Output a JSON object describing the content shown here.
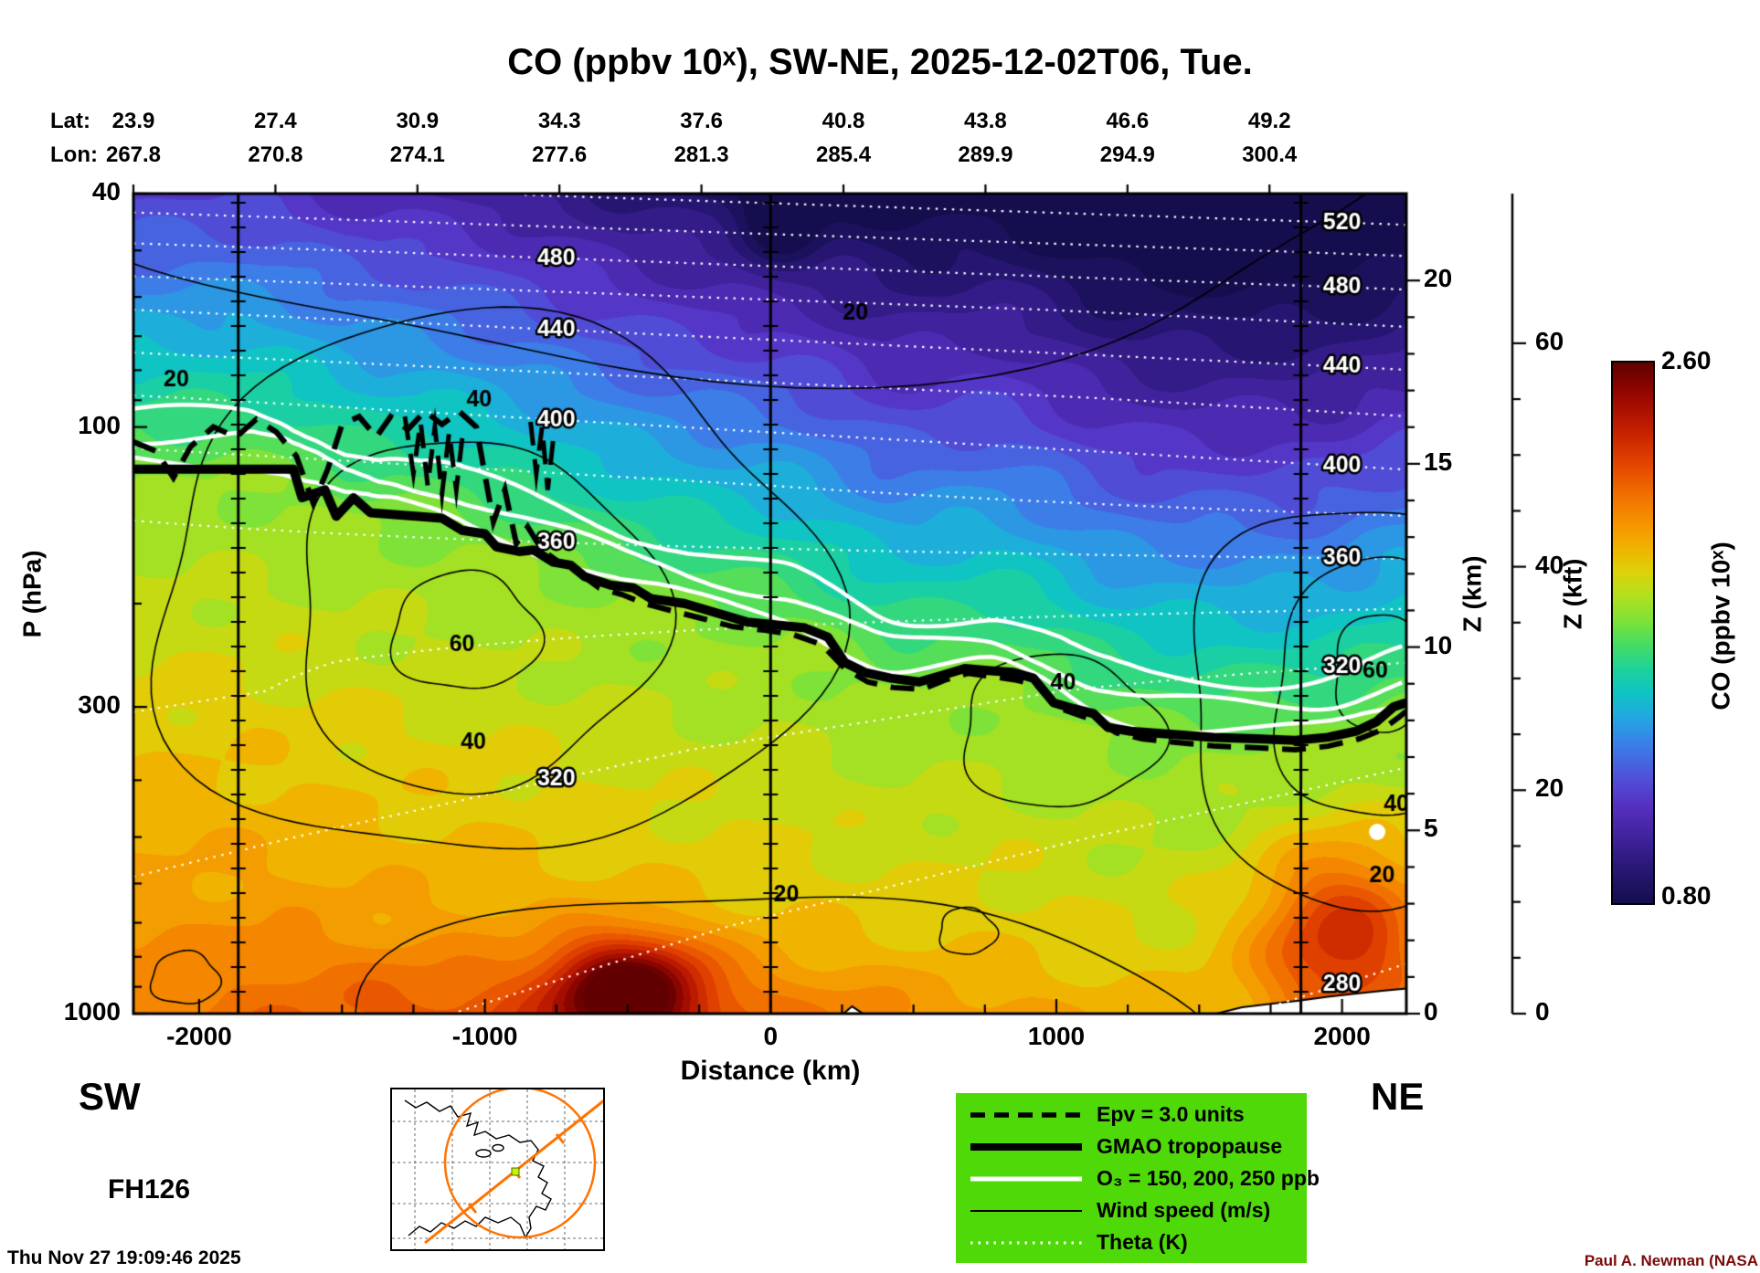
{
  "title": "CO (ppbv 10ˣ), SW-NE, 2025-12-02T06, Tue.",
  "endpoints": {
    "sw": "SW",
    "ne": "NE"
  },
  "flight_id": "FH126",
  "footer": {
    "timestamp": "Thu Nov 27 19:09:46 2025",
    "credit": "Paul A. Newman (NASA",
    "credit_color": "#7a0a0a"
  },
  "top_axis": {
    "lat_label": "Lat:",
    "lon_label": "Lon:",
    "lat_values": [
      "23.9",
      "27.4",
      "30.9",
      "34.3",
      "37.6",
      "40.8",
      "43.8",
      "46.6",
      "49.2"
    ],
    "lon_values": [
      "267.8",
      "270.8",
      "274.1",
      "277.6",
      "281.3",
      "285.4",
      "289.9",
      "294.9",
      "300.4"
    ],
    "km_positions": [
      -2230,
      -1733,
      -1236,
      -739,
      -242,
      255,
      752,
      1249,
      1746
    ]
  },
  "axes": {
    "p_label": "P (hPa)",
    "x_label": "Distance (km)",
    "z_km_label": "Z (km)",
    "z_kft_label": "Z (kft)",
    "p_ticks": [
      40,
      100,
      300,
      1000
    ],
    "p_minor_ticks": [
      50,
      60,
      70,
      80,
      90,
      200,
      400,
      500,
      600,
      700,
      800,
      900
    ],
    "x_ticks": [
      -2000,
      -1000,
      0,
      1000,
      2000
    ],
    "z_km_ticks": [
      20,
      15,
      10,
      5,
      0
    ],
    "z_kft_ticks": [
      60,
      40,
      20,
      0
    ],
    "scale_height_km": 6.95
  },
  "colorbar": {
    "label": "CO (ppbv 10ˣ)",
    "max": "2.60",
    "min": "0.80",
    "vmin": 0.8,
    "vmax": 2.6
  },
  "legend": {
    "bg_color": "#4fd908",
    "items": [
      {
        "key": "epv",
        "label": "Epv = 3.0 units",
        "style": "dashed-black-thick"
      },
      {
        "key": "tropopause",
        "label": "GMAO tropopause",
        "style": "solid-black-thick"
      },
      {
        "key": "o3",
        "label": "O₃ = 150, 200, 250 ppb",
        "style": "solid-white"
      },
      {
        "key": "wind",
        "label": "Wind speed (m/s)",
        "style": "solid-black-thin"
      },
      {
        "key": "theta",
        "label": "Theta (K)",
        "style": "dotted-white"
      }
    ]
  },
  "chart_data": {
    "type": "heatmap",
    "title": "CO (ppbv 10ˣ), SW-NE, 2025-12-02T06, Tue.",
    "xlabel": "Distance (km)",
    "ylabel": "P (hPa)",
    "x_range": [
      -2230,
      2225
    ],
    "p_range": [
      40,
      1000
    ],
    "ref_lines_km": [
      -1863,
      0,
      1856
    ],
    "co_range": [
      0.8,
      2.6
    ],
    "co_colormap": [
      [
        0.8,
        "#140e4e"
      ],
      [
        0.92,
        "#2a1878"
      ],
      [
        1.02,
        "#41229e"
      ],
      [
        1.12,
        "#5530c0"
      ],
      [
        1.22,
        "#4f52da"
      ],
      [
        1.32,
        "#3c7ce8"
      ],
      [
        1.42,
        "#22a8e0"
      ],
      [
        1.5,
        "#10c4c4"
      ],
      [
        1.58,
        "#1ed29a"
      ],
      [
        1.66,
        "#46dc64"
      ],
      [
        1.74,
        "#7ee238"
      ],
      [
        1.82,
        "#b0e01e"
      ],
      [
        1.9,
        "#dcd40a"
      ],
      [
        1.98,
        "#f0b400"
      ],
      [
        2.06,
        "#f69500"
      ],
      [
        2.16,
        "#f07000"
      ],
      [
        2.26,
        "#e44600"
      ],
      [
        2.38,
        "#c41e00"
      ],
      [
        2.5,
        "#940600"
      ],
      [
        2.6,
        "#600000"
      ]
    ],
    "tropopause_hpa": [
      [
        -2230,
        118
      ],
      [
        -1670,
        118
      ],
      [
        -1640,
        132
      ],
      [
        -1560,
        128
      ],
      [
        -1520,
        142
      ],
      [
        -1460,
        132
      ],
      [
        -1400,
        140
      ],
      [
        -1150,
        143
      ],
      [
        -1080,
        150
      ],
      [
        -1000,
        152
      ],
      [
        -960,
        160
      ],
      [
        -880,
        163
      ],
      [
        -830,
        162
      ],
      [
        -760,
        170
      ],
      [
        -700,
        172
      ],
      [
        -650,
        180
      ],
      [
        -560,
        186
      ],
      [
        -480,
        188
      ],
      [
        -420,
        196
      ],
      [
        -300,
        200
      ],
      [
        -180,
        208
      ],
      [
        -80,
        215
      ],
      [
        40,
        218
      ],
      [
        120,
        220
      ],
      [
        200,
        228
      ],
      [
        260,
        252
      ],
      [
        330,
        262
      ],
      [
        420,
        268
      ],
      [
        520,
        272
      ],
      [
        600,
        265
      ],
      [
        680,
        258
      ],
      [
        760,
        260
      ],
      [
        850,
        262
      ],
      [
        920,
        268
      ],
      [
        990,
        295
      ],
      [
        1060,
        302
      ],
      [
        1130,
        308
      ],
      [
        1180,
        325
      ],
      [
        1260,
        330
      ],
      [
        1400,
        334
      ],
      [
        1550,
        338
      ],
      [
        1700,
        340
      ],
      [
        1835,
        342
      ],
      [
        1950,
        338
      ],
      [
        2050,
        330
      ],
      [
        2120,
        318
      ],
      [
        2180,
        300
      ],
      [
        2225,
        295
      ]
    ],
    "epv_path_hpa": [
      [
        -2230,
        106
      ],
      [
        -2150,
        110
      ],
      [
        -2090,
        122
      ],
      [
        -2030,
        108
      ],
      [
        -1950,
        100
      ],
      [
        -1870,
        104
      ],
      [
        -1800,
        97
      ],
      [
        -1730,
        102
      ],
      [
        -1660,
        112
      ],
      [
        -1600,
        135
      ],
      [
        -1550,
        118
      ],
      [
        -1500,
        99
      ],
      [
        -1440,
        96
      ],
      [
        -1380,
        104
      ],
      [
        -1330,
        96
      ],
      [
        -1270,
        101
      ],
      [
        -1210,
        94
      ],
      [
        -1150,
        99
      ],
      [
        -1090,
        94
      ],
      [
        -1030,
        100
      ],
      [
        -970,
        145
      ],
      [
        -930,
        128
      ],
      [
        -890,
        158
      ],
      [
        -850,
        148
      ],
      [
        -800,
        162
      ],
      [
        -740,
        170
      ],
      [
        -680,
        176
      ],
      [
        -600,
        188
      ],
      [
        -520,
        193
      ],
      [
        -440,
        200
      ],
      [
        -340,
        206
      ],
      [
        -240,
        212
      ],
      [
        -130,
        219
      ],
      [
        -20,
        222
      ],
      [
        80,
        226
      ],
      [
        180,
        235
      ],
      [
        260,
        258
      ],
      [
        340,
        272
      ],
      [
        430,
        278
      ],
      [
        530,
        280
      ],
      [
        610,
        270
      ],
      [
        690,
        263
      ],
      [
        770,
        266
      ],
      [
        860,
        270
      ],
      [
        930,
        275
      ],
      [
        1000,
        300
      ],
      [
        1080,
        310
      ],
      [
        1150,
        318
      ],
      [
        1210,
        332
      ],
      [
        1300,
        340
      ],
      [
        1420,
        345
      ],
      [
        1560,
        350
      ],
      [
        1700,
        352
      ],
      [
        1835,
        355
      ],
      [
        1950,
        350
      ],
      [
        2060,
        340
      ],
      [
        2140,
        328
      ],
      [
        2200,
        312
      ],
      [
        2225,
        305
      ]
    ],
    "epv_extra_paths": [
      [
        [
          -1280,
          96
        ],
        [
          -1250,
          120
        ],
        [
          -1225,
          98
        ],
        [
          -1200,
          126
        ],
        [
          -1175,
          100
        ],
        [
          -1150,
          130
        ],
        [
          -1125,
          102
        ],
        [
          -1100,
          128
        ],
        [
          -1075,
          100
        ]
      ],
      [
        [
          -840,
          98
        ],
        [
          -820,
          120
        ],
        [
          -800,
          100
        ],
        [
          -780,
          128
        ],
        [
          -760,
          104
        ]
      ]
    ],
    "o3_levels_ppb": [
      150,
      200,
      250
    ],
    "o3_offset_scales": [
      0.97,
      0.88,
      0.8
    ],
    "theta_contours": {
      "min": 280,
      "max": 540,
      "step": 20,
      "labeled": [
        280,
        320,
        360,
        400,
        440,
        480,
        520
      ],
      "label_x_km": [
        -750,
        2000
      ],
      "A_knots": [
        [
          1.6,
          527
        ],
        [
          1.7,
          489
        ],
        [
          1.8,
          454
        ],
        [
          1.95,
          413
        ],
        [
          2.1,
          380
        ],
        [
          2.25,
          352
        ],
        [
          2.4,
          332
        ],
        [
          2.55,
          318
        ],
        [
          2.7,
          308
        ],
        [
          2.85,
          299
        ],
        [
          3.0,
          292
        ]
      ],
      "B_troposphere": -16,
      "B_stratosphere": 14
    },
    "wind_contours": [
      {
        "level": 20,
        "cx": -1000,
        "cl": 2.28,
        "rx": 1180,
        "rl": 0.46,
        "w0": 0.5
      },
      {
        "level": 40,
        "cx": -1040,
        "cl": 2.32,
        "rx": 640,
        "rl": 0.3,
        "w0": 1.7
      },
      {
        "level": 60,
        "cx": -1070,
        "cl": 2.35,
        "rx": 260,
        "rl": 0.1,
        "w0": 0.3
      },
      {
        "level": 20,
        "cx": 2100,
        "cl": 2.47,
        "rx": 660,
        "rl": 0.34,
        "w0": 2.1
      },
      {
        "level": 40,
        "cx": 2140,
        "cl": 2.45,
        "rx": 390,
        "rl": 0.22,
        "w0": 0.8
      },
      {
        "level": 60,
        "cx": 2150,
        "cl": 2.42,
        "rx": 185,
        "rl": 0.1,
        "w0": 1.5
      },
      {
        "level": 20,
        "cx": -200,
        "cl": 1.5,
        "rx": 2500,
        "rl": 0.4,
        "w0": 4.0
      },
      {
        "level": 20,
        "cx": 0,
        "cl": 3.12,
        "rx": 1500,
        "rl": 0.34,
        "w0": 2.6
      },
      {
        "level": 40,
        "cx": 1010,
        "cl": 2.52,
        "rx": 350,
        "rl": 0.13,
        "w0": 1.1
      },
      {
        "level": 20,
        "cx": -2050,
        "cl": 2.94,
        "rx": 120,
        "rl": 0.045,
        "w0": 0.2
      },
      {
        "level": 20,
        "cx": 688,
        "cl": 2.86,
        "rx": 100,
        "rl": 0.04,
        "w0": 0.9
      }
    ],
    "wind_labels": [
      [
        -2080,
        83,
        "20"
      ],
      [
        -1020,
        90,
        "40"
      ],
      [
        297,
        64,
        "20"
      ],
      [
        -1080,
        235,
        "60"
      ],
      [
        -1040,
        345,
        "40"
      ],
      [
        55,
        628,
        "20"
      ],
      [
        1024,
        273,
        "40"
      ],
      [
        2116,
        261,
        "60"
      ],
      [
        2190,
        441,
        "40"
      ],
      [
        2140,
        582,
        "20"
      ]
    ],
    "co_hotspots": [
      [
        -500,
        2.96,
        260,
        0.09,
        0.62
      ],
      [
        2000,
        2.87,
        300,
        0.17,
        0.45
      ],
      [
        -700,
        3.02,
        1500,
        0.12,
        0.18
      ]
    ],
    "dark_streak": [
      40,
      1.63,
      130,
      0.09,
      0.25
    ],
    "terrain_white": [
      [
        1560,
        1000
      ],
      [
        1650,
        975
      ],
      [
        1750,
        962
      ],
      [
        1850,
        950
      ],
      [
        1950,
        936
      ],
      [
        2050,
        924
      ],
      [
        2140,
        914
      ],
      [
        2225,
        906
      ],
      [
        2225,
        1080
      ],
      [
        1560,
        1080
      ]
    ],
    "terrain_bump": [
      [
        250,
        1005
      ],
      [
        285,
        972
      ],
      [
        330,
        1005
      ]
    ],
    "white_spot": [
      2123,
      490,
      9
    ]
  }
}
